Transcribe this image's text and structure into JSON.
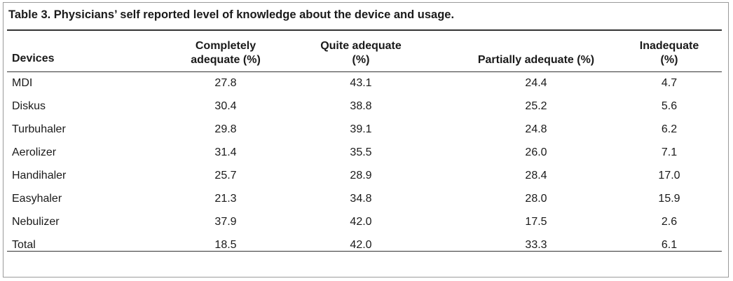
{
  "table": {
    "title": "Table 3. Physicians’ self reported level of knowledge about the device and usage.",
    "header": [
      "Devices",
      "Completely adequate (%)",
      "Quite adequate (%)",
      "Partially adequate (%)",
      "Inadequate (%)"
    ],
    "rows": [
      [
        "MDI",
        "27.8",
        "43.1",
        "24.4",
        "4.7"
      ],
      [
        "Diskus",
        "30.4",
        "38.8",
        "25.2",
        "5.6"
      ],
      [
        "Turbuhaler",
        "29.8",
        "39.1",
        "24.8",
        "6.2"
      ],
      [
        "Aerolizer",
        "31.4",
        "35.5",
        "26.0",
        "7.1"
      ],
      [
        "Handihaler",
        "25.7",
        "28.9",
        "28.4",
        "17.0"
      ],
      [
        "Easyhaler",
        "21.3",
        "34.8",
        "28.0",
        "15.9"
      ],
      [
        "Nebulizer",
        "37.9",
        "42.0",
        "17.5",
        "2.6"
      ],
      [
        "Total",
        "18.5",
        "42.0",
        "33.3",
        "6.1"
      ]
    ]
  }
}
